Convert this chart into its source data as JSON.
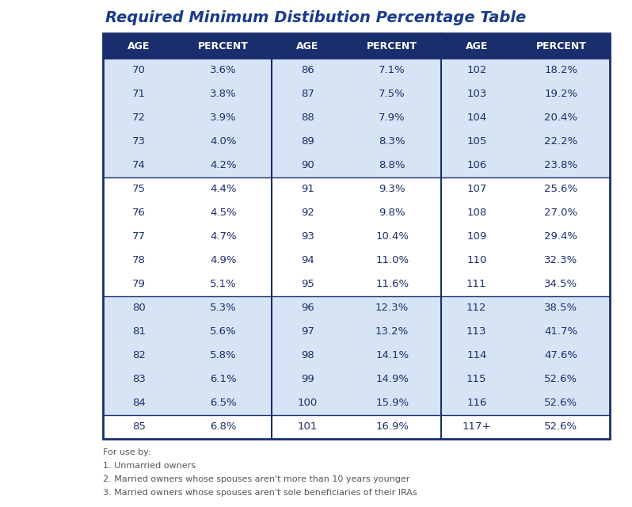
{
  "title": "Required Minimum Distibution Percentage Table",
  "title_color": "#1a3a8a",
  "header_bg": "#1a2e6e",
  "header_text_color": "#ffffff",
  "header_labels": [
    "AGE",
    "PERCENT",
    "AGE",
    "PERCENT",
    "AGE",
    "PERCENT"
  ],
  "col1_data": [
    [
      "70",
      "3.6%"
    ],
    [
      "71",
      "3.8%"
    ],
    [
      "72",
      "3.9%"
    ],
    [
      "73",
      "4.0%"
    ],
    [
      "74",
      "4.2%"
    ],
    [
      "75",
      "4.4%"
    ],
    [
      "76",
      "4.5%"
    ],
    [
      "77",
      "4.7%"
    ],
    [
      "78",
      "4.9%"
    ],
    [
      "79",
      "5.1%"
    ],
    [
      "80",
      "5.3%"
    ],
    [
      "81",
      "5.6%"
    ],
    [
      "82",
      "5.8%"
    ],
    [
      "83",
      "6.1%"
    ],
    [
      "84",
      "6.5%"
    ],
    [
      "85",
      "6.8%"
    ]
  ],
  "col2_data": [
    [
      "86",
      "7.1%"
    ],
    [
      "87",
      "7.5%"
    ],
    [
      "88",
      "7.9%"
    ],
    [
      "89",
      "8.3%"
    ],
    [
      "90",
      "8.8%"
    ],
    [
      "91",
      "9.3%"
    ],
    [
      "92",
      "9.8%"
    ],
    [
      "93",
      "10.4%"
    ],
    [
      "94",
      "11.0%"
    ],
    [
      "95",
      "11.6%"
    ],
    [
      "96",
      "12.3%"
    ],
    [
      "97",
      "13.2%"
    ],
    [
      "98",
      "14.1%"
    ],
    [
      "99",
      "14.9%"
    ],
    [
      "100",
      "15.9%"
    ],
    [
      "101",
      "16.9%"
    ]
  ],
  "col3_data": [
    [
      "102",
      "18.2%"
    ],
    [
      "103",
      "19.2%"
    ],
    [
      "104",
      "20.4%"
    ],
    [
      "105",
      "22.2%"
    ],
    [
      "106",
      "23.8%"
    ],
    [
      "107",
      "25.6%"
    ],
    [
      "108",
      "27.0%"
    ],
    [
      "109",
      "29.4%"
    ],
    [
      "110",
      "32.3%"
    ],
    [
      "111",
      "34.5%"
    ],
    [
      "112",
      "38.5%"
    ],
    [
      "113",
      "41.7%"
    ],
    [
      "114",
      "47.6%"
    ],
    [
      "115",
      "52.6%"
    ],
    [
      "116",
      "52.6%"
    ],
    [
      "117+",
      "52.6%"
    ]
  ],
  "data_text_color": "#1a2e6e",
  "row_bg_light": "#d6e4f5",
  "row_bg_white": "#ffffff",
  "border_color": "#1a2e6e",
  "footer_lines": [
    "For use by:",
    "1. Unmarried owners",
    "2. Married owners whose spouses aren't more than 10 years younger",
    "3. Married owners whose spouses aren't sole beneficiaries of their IRAs"
  ],
  "footer_color": "#555555",
  "fig_width": 7.98,
  "fig_height": 6.4,
  "dpi": 100
}
